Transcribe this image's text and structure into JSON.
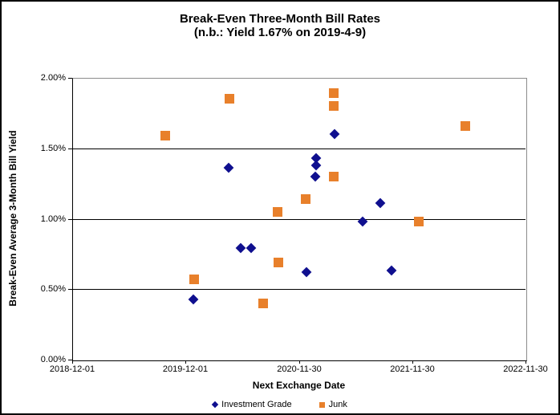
{
  "title": {
    "line1": "Break-Even Three-Month Bill Rates",
    "line2": "(n.b.: Yield 1.67% on 2019-4-9)"
  },
  "colors": {
    "investment_grade": "#0F0F8F",
    "junk": "#E8802B",
    "gridline": "#000000",
    "plot_border_gray": "#8C8C8C",
    "text": "#000000",
    "background": "#FFFFFF"
  },
  "chart_data": {
    "type": "scatter",
    "title": "Break-Even Three-Month Bill Rates",
    "subtitle": "(n.b.: Yield 1.67% on 2019-4-9)",
    "xlabel": "Next Exchange Date",
    "ylabel": "Break-Even Average 3-Month Bill Yield",
    "x_type": "date",
    "xlim": [
      "2018-12-01",
      "2022-11-30"
    ],
    "ylim": [
      0,
      2
    ],
    "grid": "horizontal",
    "legend_position": "bottom-center",
    "x_ticks": [
      {
        "label": "2018-12-01",
        "date": "2018-12-01"
      },
      {
        "label": "2019-12-01",
        "date": "2019-12-01"
      },
      {
        "label": "2020-11-30",
        "date": "2020-11-30"
      },
      {
        "label": "2021-11-30",
        "date": "2021-11-30"
      },
      {
        "label": "2022-11-30",
        "date": "2022-11-30"
      }
    ],
    "y_ticks": [
      {
        "label": "2.00%",
        "value": 2.0
      },
      {
        "label": "1.50%",
        "value": 1.5
      },
      {
        "label": "1.00%",
        "value": 1.0
      },
      {
        "label": "0.50%",
        "value": 0.5
      },
      {
        "label": "0.00%",
        "value": 0.0
      }
    ],
    "series": [
      {
        "name": "Investment Grade",
        "marker": "diamond",
        "color": "#0F0F8F",
        "points": [
          {
            "date": "2019-12-26",
            "yield_pct": 0.43
          },
          {
            "date": "2020-04-19",
            "yield_pct": 1.36
          },
          {
            "date": "2020-05-26",
            "yield_pct": 0.79
          },
          {
            "date": "2020-06-28",
            "yield_pct": 0.79
          },
          {
            "date": "2020-12-24",
            "yield_pct": 0.62
          },
          {
            "date": "2021-01-22",
            "yield_pct": 1.3
          },
          {
            "date": "2021-01-24",
            "yield_pct": 1.43
          },
          {
            "date": "2021-01-24",
            "yield_pct": 1.38
          },
          {
            "date": "2021-03-25",
            "yield_pct": 1.6
          },
          {
            "date": "2021-06-24",
            "yield_pct": 0.98
          },
          {
            "date": "2021-08-19",
            "yield_pct": 1.11
          },
          {
            "date": "2021-09-24",
            "yield_pct": 0.63
          }
        ]
      },
      {
        "name": "Junk",
        "marker": "square",
        "color": "#E8802B",
        "points": [
          {
            "date": "2019-09-27",
            "yield_pct": 1.59
          },
          {
            "date": "2019-12-28",
            "yield_pct": 0.57
          },
          {
            "date": "2020-04-21",
            "yield_pct": 1.85
          },
          {
            "date": "2020-08-08",
            "yield_pct": 0.4
          },
          {
            "date": "2020-09-22",
            "yield_pct": 1.05
          },
          {
            "date": "2020-09-25",
            "yield_pct": 0.69
          },
          {
            "date": "2020-12-21",
            "yield_pct": 1.14
          },
          {
            "date": "2021-03-23",
            "yield_pct": 1.89
          },
          {
            "date": "2021-03-23",
            "yield_pct": 1.8
          },
          {
            "date": "2021-03-23",
            "yield_pct": 1.3
          },
          {
            "date": "2021-12-20",
            "yield_pct": 0.98
          },
          {
            "date": "2022-05-19",
            "yield_pct": 1.66
          }
        ]
      }
    ]
  }
}
